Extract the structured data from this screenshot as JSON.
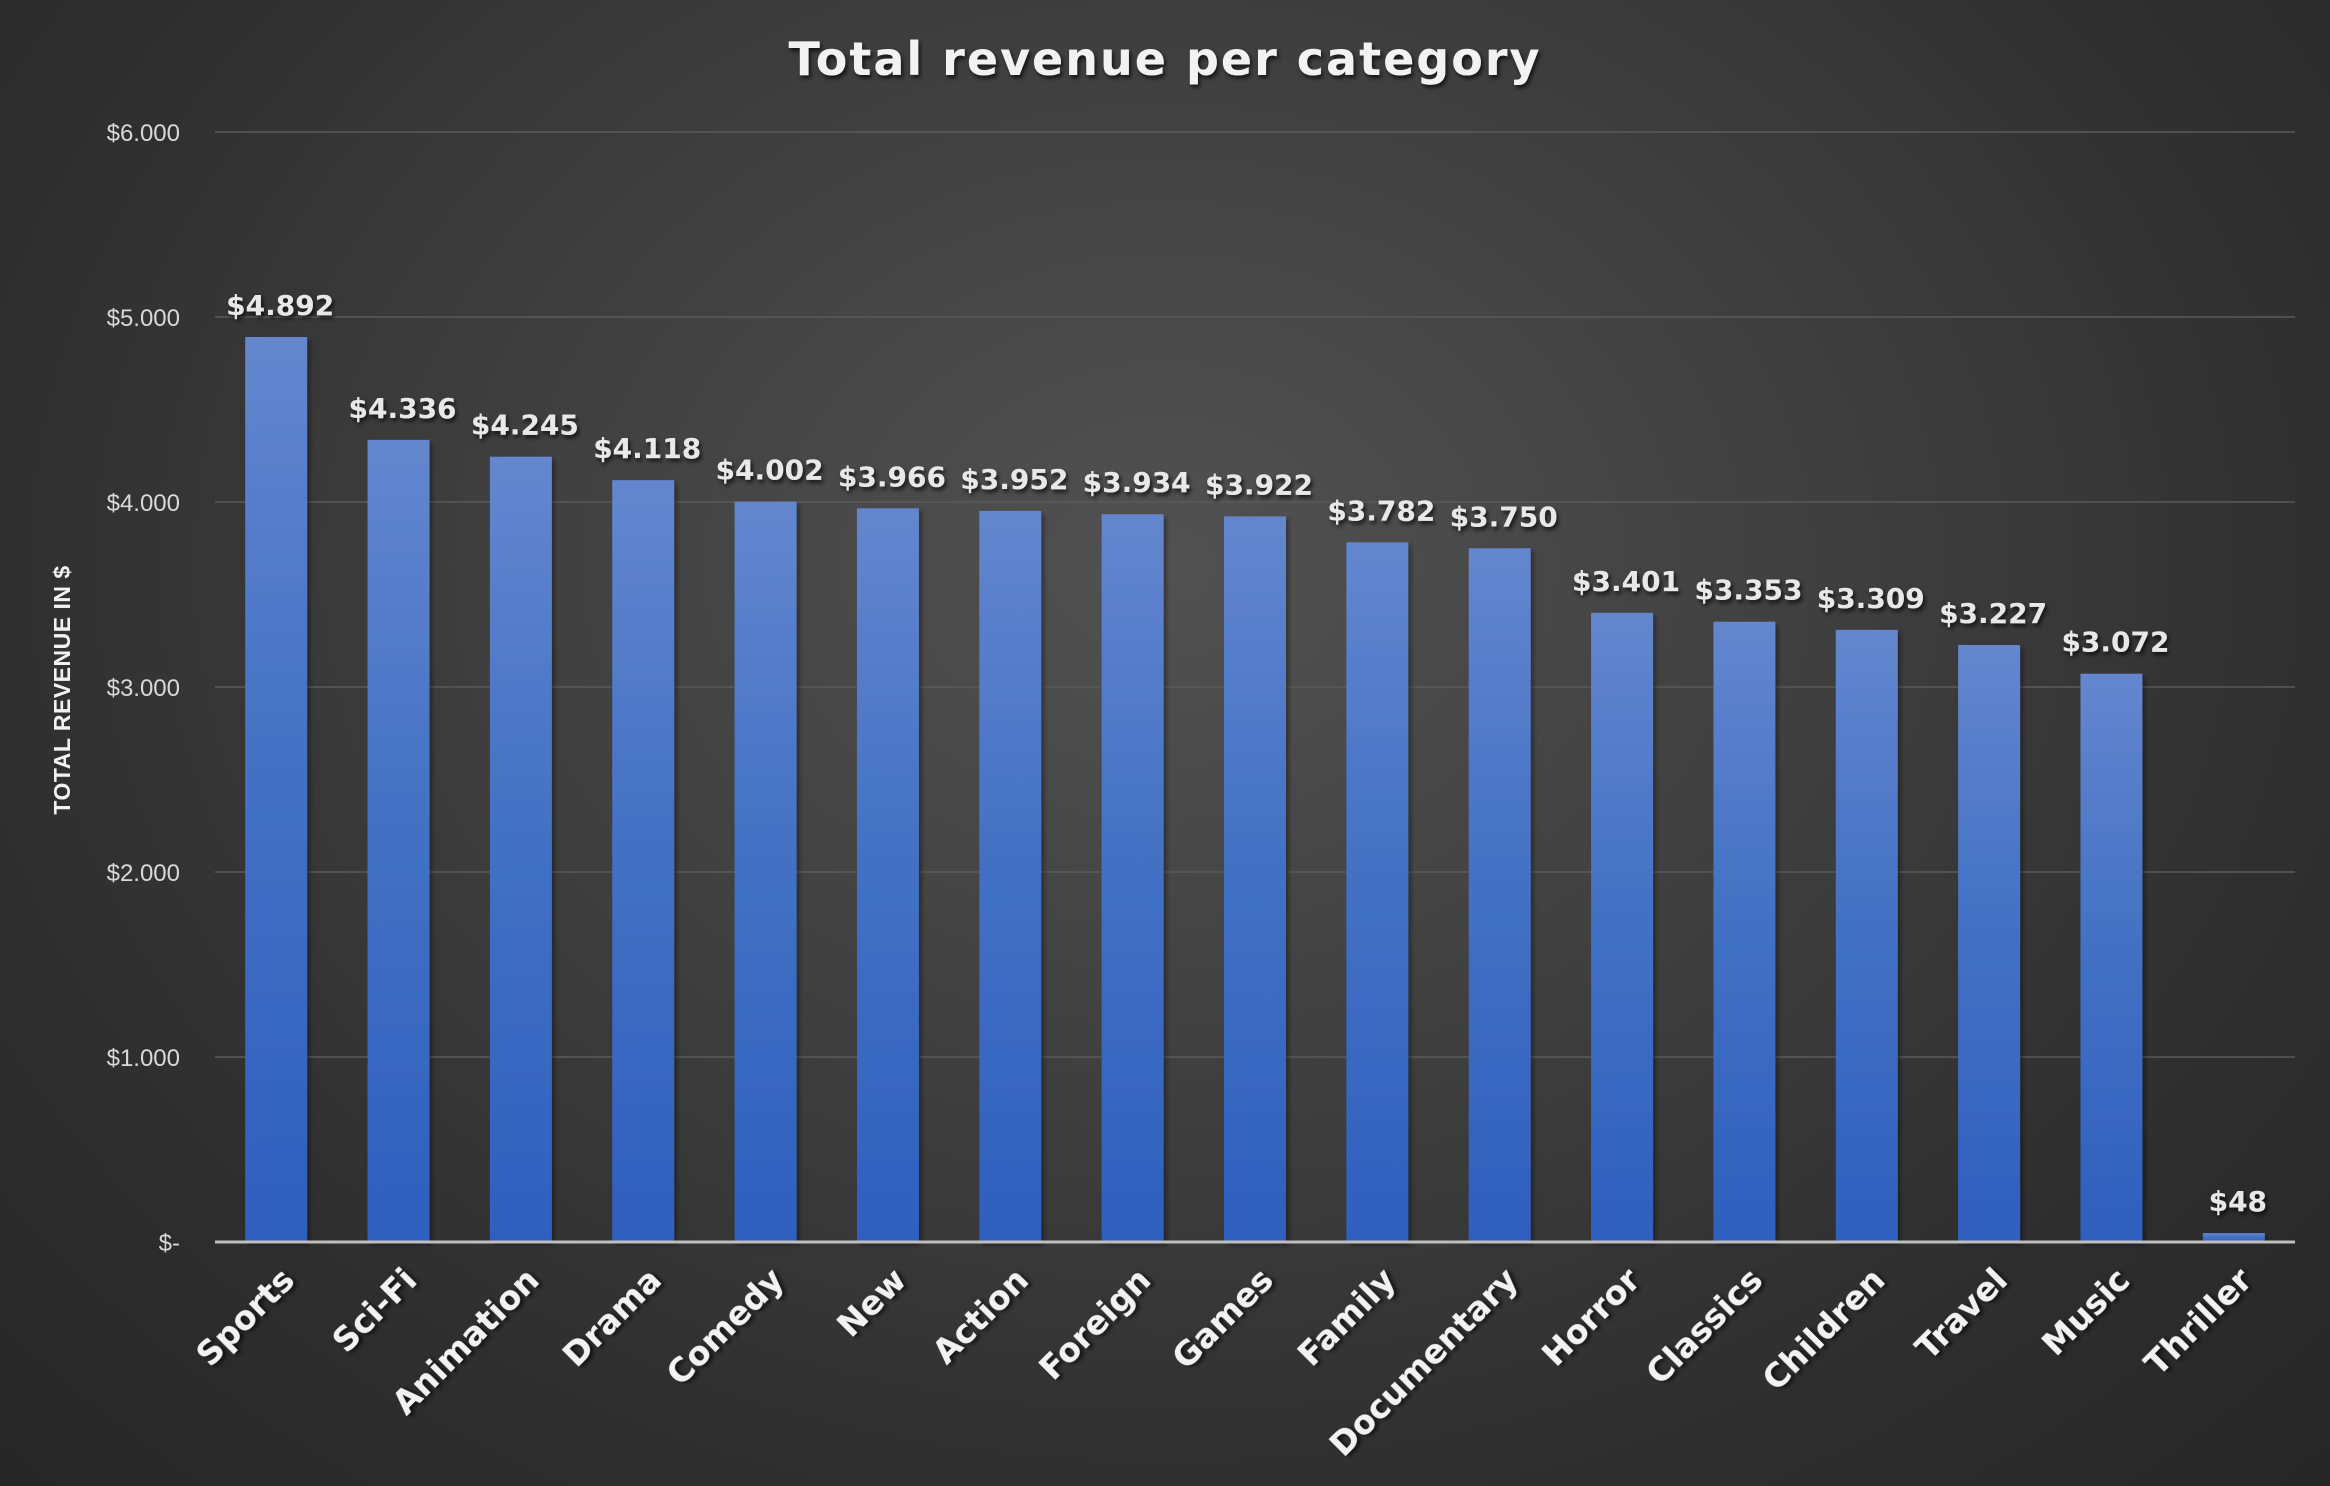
{
  "chart_data": {
    "type": "bar",
    "title": "Total revenue per category",
    "xlabel": "",
    "ylabel": "TOTAL REVENUE IN $",
    "ylim": [
      0,
      6000
    ],
    "yticks": [
      0,
      1000,
      2000,
      3000,
      4000,
      5000,
      6000
    ],
    "ytick_labels": [
      "$-",
      "$1.000",
      "$2.000",
      "$3.000",
      "$4.000",
      "$5.000",
      "$6.000"
    ],
    "grid": true,
    "legend": "none",
    "bar_color": "#4472c4",
    "categories": [
      "Sports",
      "Sci-Fi",
      "Animation",
      "Drama",
      "Comedy",
      "New",
      "Action",
      "Foreign",
      "Games",
      "Family",
      "Documentary",
      "Horror",
      "Classics",
      "Children",
      "Travel",
      "Music",
      "Thriller"
    ],
    "values": [
      4892,
      4336,
      4245,
      4118,
      4002,
      3966,
      3952,
      3934,
      3922,
      3782,
      3750,
      3401,
      3353,
      3309,
      3227,
      3072,
      48
    ],
    "data_labels": [
      "$4.892",
      "$4.336",
      "$4.245",
      "$4.118",
      "$4.002",
      "$3.966",
      "$3.952",
      "$3.934",
      "$3.922",
      "$3.782",
      "$3.750",
      "$3.401",
      "$3.353",
      "$3.309",
      "$3.227",
      "$3.072",
      "$48"
    ]
  }
}
